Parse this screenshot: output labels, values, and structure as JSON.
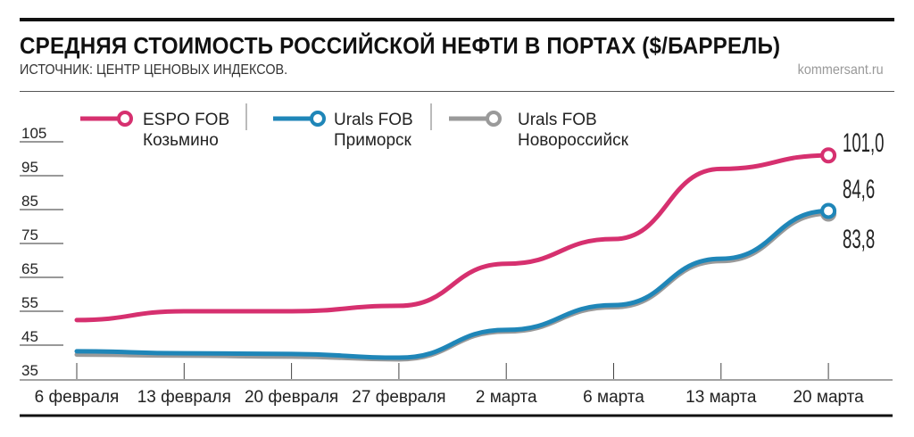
{
  "header": {
    "title": "СРЕДНЯЯ СТОИМОСТЬ РОССИЙСКОЙ НЕФТИ В ПОРТАХ ($/БАРРЕЛЬ)",
    "source": "ИСТОЧНИК: ЦЕНТР ЦЕНОВЫХ ИНДЕКСОВ.",
    "site": "kommersant.ru"
  },
  "chart_data": {
    "type": "line",
    "categories": [
      "6 февраля",
      "13 февраля",
      "20 февраля",
      "27 февраля",
      "2 марта",
      "6 марта",
      "13 марта",
      "20 марта"
    ],
    "ylim": [
      35,
      105
    ],
    "yticks": [
      "105",
      "95",
      "85",
      "75",
      "65",
      "55",
      "45",
      "35"
    ],
    "grid": false,
    "legend": "top",
    "series": [
      {
        "name": "ESPO FOB",
        "sub": "Козьмино",
        "color": "#d6306f",
        "values": [
          52.4,
          55,
          55,
          56.6,
          69,
          76.3,
          97,
          101.0
        ],
        "end_label": "101,0"
      },
      {
        "name": "Urals FOB",
        "sub": "Приморск",
        "color": "#1f86b8",
        "values": [
          43.2,
          42.6,
          42.4,
          41.3,
          49.5,
          56.8,
          70.5,
          84.6
        ],
        "end_label": "84,6"
      },
      {
        "name": "Urals FOB",
        "sub": "Новороссийск",
        "color": "#9a9a9a",
        "values": [
          42.2,
          41.9,
          41.6,
          40.8,
          49,
          56.2,
          69.8,
          83.8
        ],
        "end_label": "83,8"
      }
    ]
  }
}
